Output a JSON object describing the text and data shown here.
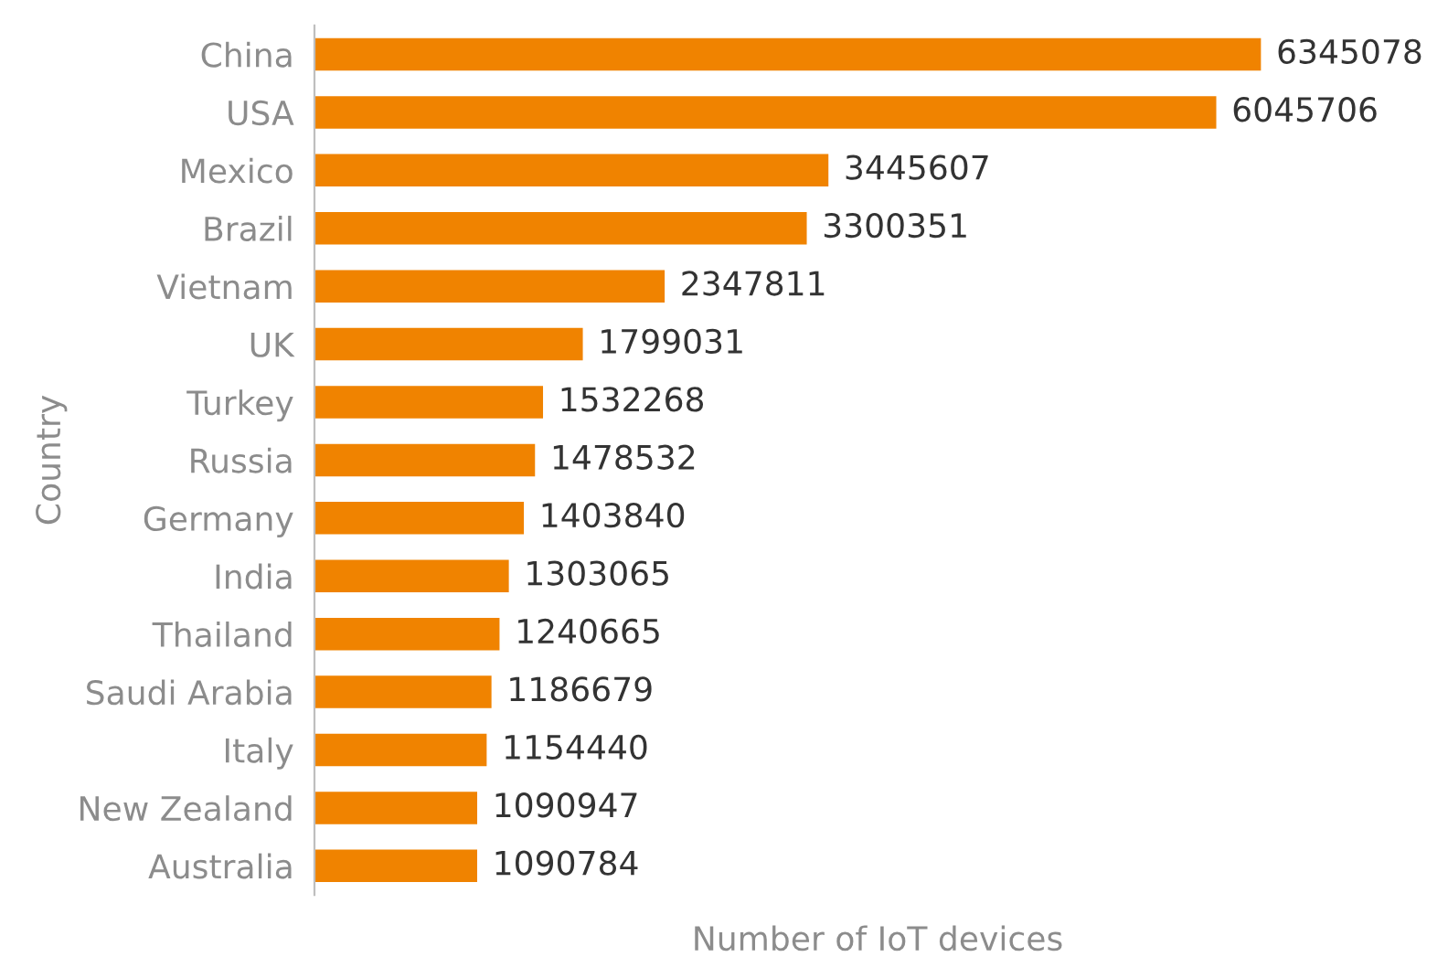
{
  "chart_data": {
    "type": "bar",
    "orientation": "horizontal",
    "xlabel": "Number of IoT devices",
    "ylabel": "Country",
    "categories": [
      "China",
      "USA",
      "Mexico",
      "Brazil",
      "Vietnam",
      "UK",
      "Turkey",
      "Russia",
      "Germany",
      "India",
      "Thailand",
      "Saudi Arabia",
      "Italy",
      "New Zealand",
      "Australia"
    ],
    "values": [
      6345078,
      6045706,
      3445607,
      3300351,
      2347811,
      1799031,
      1532268,
      1478532,
      1403840,
      1303065,
      1240665,
      1186679,
      1154440,
      1090947,
      1090784
    ],
    "color": "#f08300",
    "data_labels": true,
    "tick_labels": "y"
  }
}
